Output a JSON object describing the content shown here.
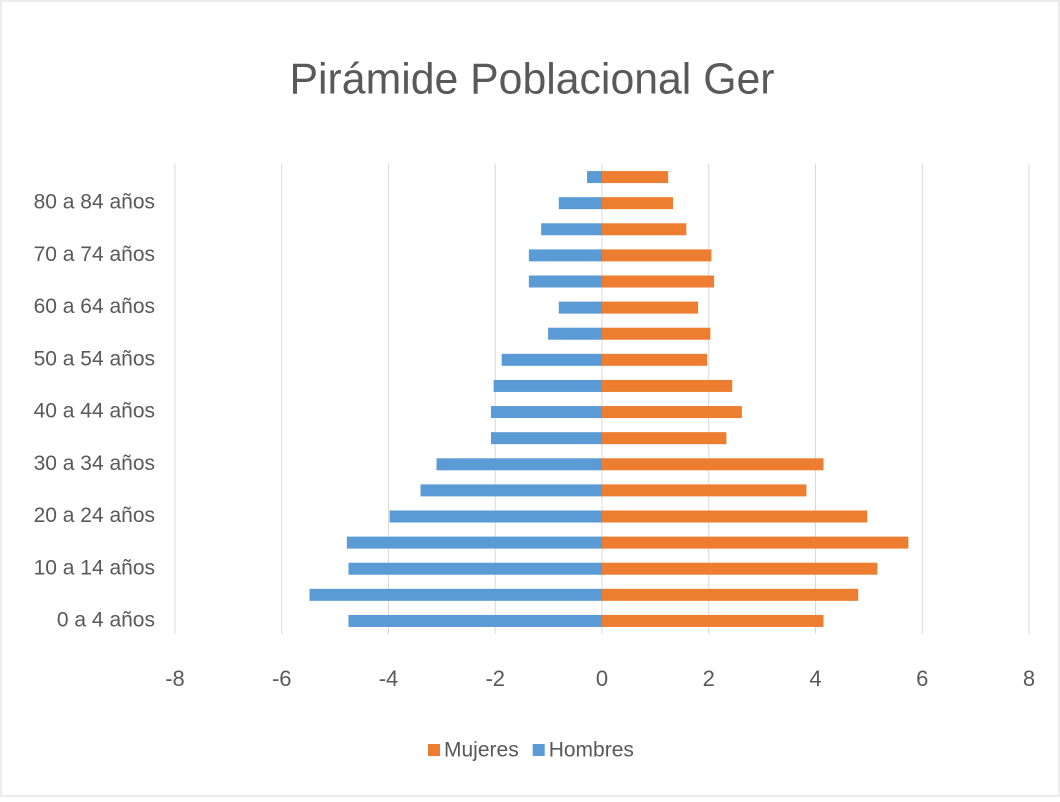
{
  "chart_data": {
    "type": "bar",
    "orientation": "horizontal",
    "stacked": "overlap",
    "title": "Pirámide Poblacional Ger",
    "categories": [
      "0 a 4 años",
      null,
      "10 a 14 años",
      null,
      "20 a 24 años",
      null,
      "30 a 34 años",
      null,
      "40 a 44 años",
      null,
      "50 a 54 años",
      null,
      "60 a 64 años",
      null,
      "70 a 74 años",
      null,
      "80 a 84 años",
      null
    ],
    "series": [
      {
        "name": "Mujeres",
        "color": "#ed7d31",
        "values": [
          4.15,
          4.8,
          5.16,
          5.74,
          4.97,
          3.83,
          4.15,
          2.33,
          2.62,
          2.44,
          1.97,
          2.03,
          1.8,
          2.1,
          2.05,
          1.58,
          1.33,
          1.24
        ]
      },
      {
        "name": "Hombres",
        "color": "#5b9bd5",
        "values": [
          -4.75,
          -5.48,
          -4.75,
          -4.78,
          -3.98,
          -3.4,
          -3.1,
          -2.08,
          -2.08,
          -2.03,
          -1.88,
          -1.01,
          -0.81,
          -1.37,
          -1.37,
          -1.14,
          -0.81,
          -0.28
        ]
      }
    ],
    "xlim": [
      -8,
      8
    ],
    "xticks": [
      -8,
      -6,
      -4,
      -2,
      0,
      2,
      4,
      6,
      8
    ],
    "grid": true,
    "legend": "bottom"
  }
}
